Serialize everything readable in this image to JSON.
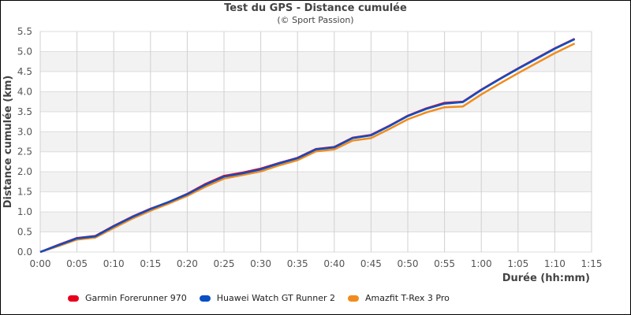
{
  "chart_data": {
    "type": "line",
    "title": "Test du GPS - Distance cumulée",
    "subtitle": "(© Sport Passion)",
    "xlabel": "Durée (hh:mm)",
    "ylabel": "Distance cumulée (km)",
    "xlim_minutes": [
      0,
      75
    ],
    "ylim": [
      0,
      5.5
    ],
    "x_ticks": [
      "0:00",
      "0:05",
      "0:10",
      "0:15",
      "0:20",
      "0:25",
      "0:30",
      "0:35",
      "0:40",
      "0:45",
      "0:50",
      "0:55",
      "1:00",
      "1:05",
      "1:10",
      "1:15"
    ],
    "y_ticks": [
      "0.0",
      "0.5",
      "1.0",
      "1.5",
      "2.0",
      "2.5",
      "3.0",
      "3.5",
      "4.0",
      "4.5",
      "5.0",
      "5.5"
    ],
    "grid": "vertical lines + alternating horizontal bands",
    "legend_position": "bottom",
    "x_minutes": [
      0,
      2.5,
      5,
      7.5,
      10,
      12.5,
      15,
      17.5,
      20,
      22.5,
      25,
      27.5,
      30,
      32.5,
      35,
      37.5,
      40,
      42.5,
      45,
      47.5,
      50,
      52.5,
      55,
      57.5,
      60,
      62.5,
      65,
      67.5,
      70,
      72.7
    ],
    "series": [
      {
        "name": "Garmin Forerunner 970",
        "color": "#e8001c",
        "values": [
          0.0,
          0.18,
          0.35,
          0.4,
          0.65,
          0.88,
          1.08,
          1.25,
          1.45,
          1.7,
          1.9,
          1.98,
          2.08,
          2.22,
          2.35,
          2.57,
          2.62,
          2.85,
          2.92,
          3.15,
          3.4,
          3.58,
          3.72,
          3.75,
          4.05,
          4.32,
          4.58,
          4.83,
          5.08,
          5.32
        ]
      },
      {
        "name": "Huawei Watch GT Runner 2",
        "color": "#0a4fc4",
        "values": [
          0.0,
          0.17,
          0.34,
          0.39,
          0.64,
          0.87,
          1.07,
          1.25,
          1.44,
          1.68,
          1.88,
          1.96,
          2.06,
          2.21,
          2.34,
          2.56,
          2.61,
          2.84,
          2.91,
          3.14,
          3.39,
          3.57,
          3.7,
          3.74,
          4.04,
          4.31,
          4.57,
          4.82,
          5.07,
          5.31
        ]
      },
      {
        "name": "Amazfit T-Rex 3 Pro",
        "color": "#f08c1e",
        "values": [
          0.0,
          0.15,
          0.31,
          0.36,
          0.6,
          0.83,
          1.03,
          1.21,
          1.4,
          1.63,
          1.83,
          1.92,
          2.01,
          2.16,
          2.29,
          2.51,
          2.56,
          2.78,
          2.84,
          3.07,
          3.31,
          3.48,
          3.61,
          3.63,
          3.93,
          4.2,
          4.46,
          4.71,
          4.96,
          5.2
        ]
      }
    ]
  }
}
